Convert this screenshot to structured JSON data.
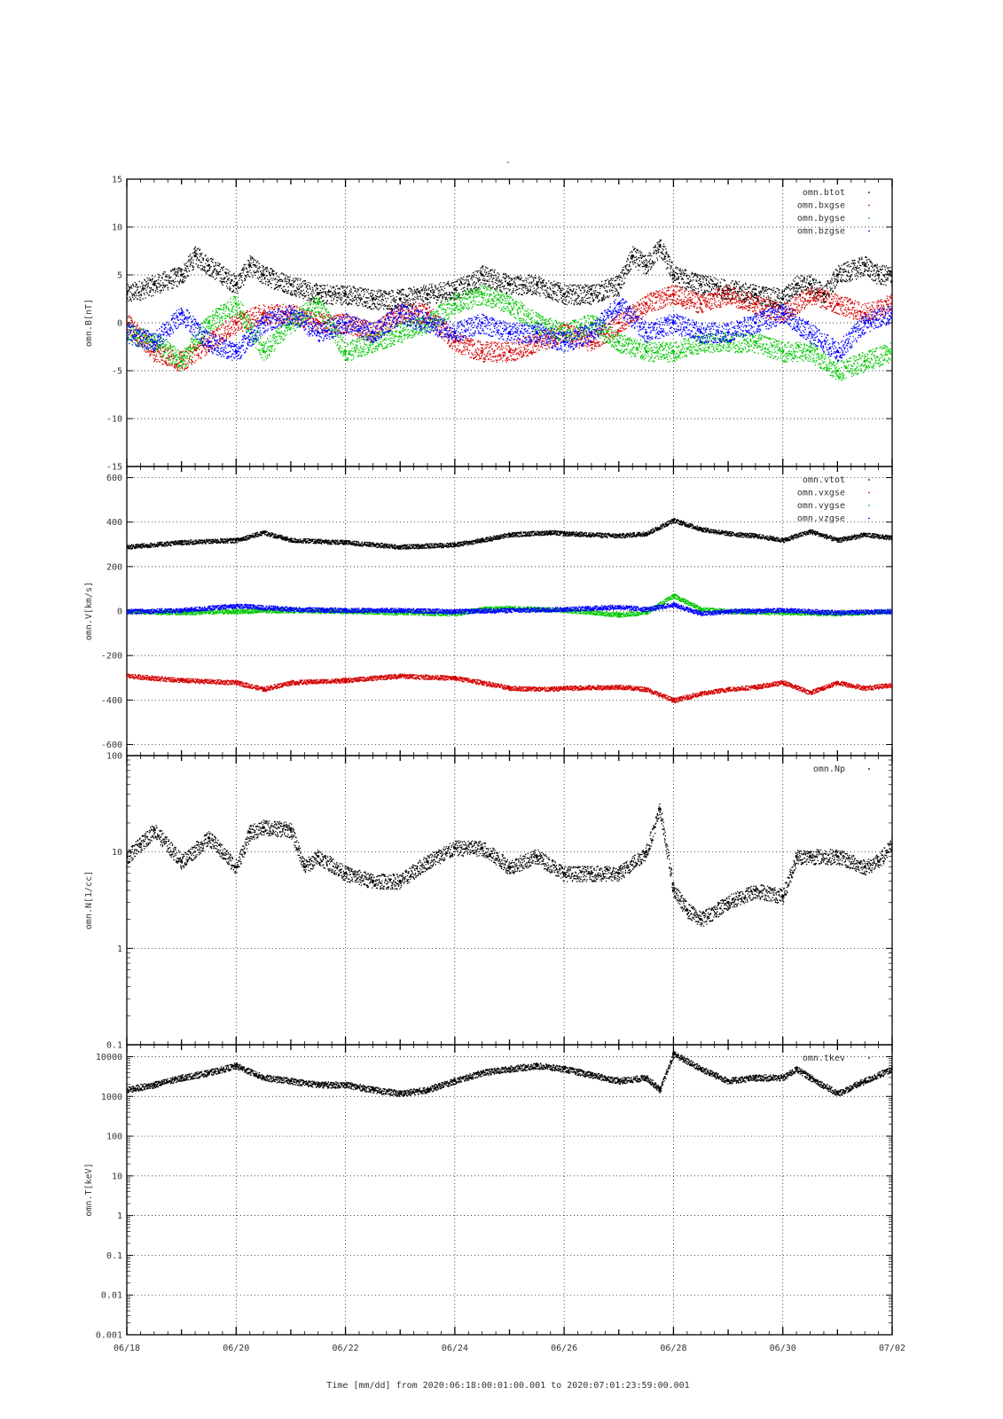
{
  "page": {
    "title": "-"
  },
  "colors": {
    "btot": "#000000",
    "bx": "#d40000",
    "by": "#00c800",
    "bz": "#0000ff"
  },
  "time": {
    "start_day": "2020-06-18",
    "end_day": "2020-07-02",
    "tick_labels": [
      "06/18",
      "06/20",
      "06/22",
      "06/24",
      "06/26",
      "06/28",
      "06/30",
      "07/02"
    ],
    "xlabel": "Time [mm/dd]  from 2020:06:18:00:01:00.001  to  2020:07:01:23:59:00.001"
  },
  "chart_data": [
    {
      "type": "scatter",
      "ylabel": "omn.B[nT]",
      "ylim": [
        -15,
        15
      ],
      "yscale": "linear",
      "ytick_labels": [
        "15",
        "10",
        "5",
        "0",
        "-5",
        "-10",
        "-15"
      ],
      "ytick_values": [
        15,
        10,
        5,
        0,
        -5,
        -10,
        -15
      ],
      "legend_position": "top-right",
      "grid": true,
      "series": [
        {
          "name": "omn.btot",
          "color_key": "btot",
          "x": [
            "06/18 00:00",
            "06/18 12:00",
            "06/19 00:00",
            "06/19 06:00",
            "06/19 12:00",
            "06/20 00:00",
            "06/20 06:00",
            "06/20 12:00",
            "06/21 00:00",
            "06/21 12:00",
            "06/22 00:00",
            "06/22 12:00",
            "06/23 00:00",
            "06/23 12:00",
            "06/24 00:00",
            "06/24 06:00",
            "06/24 12:00",
            "06/25 00:00",
            "06/25 12:00",
            "06/26 00:00",
            "06/26 12:00",
            "06/27 00:00",
            "06/27 06:00",
            "06/27 12:00",
            "06/27 18:00",
            "06/28 00:00",
            "06/28 12:00",
            "06/29 00:00",
            "06/29 12:00",
            "06/30 00:00",
            "06/30 06:00",
            "06/30 12:00",
            "06/30 18:00",
            "07/01 00:00",
            "07/01 12:00",
            "07/01 18:00",
            "07/02 00:00"
          ],
          "y": [
            3,
            4,
            5,
            7,
            6,
            4,
            6,
            5,
            4,
            3,
            3,
            2.5,
            2.5,
            3,
            3.5,
            4,
            5,
            4,
            4,
            3,
            3,
            4,
            7,
            6,
            8,
            5,
            4,
            3.5,
            3,
            2.5,
            4,
            4,
            3,
            5,
            6,
            5,
            5
          ]
        },
        {
          "name": "omn.bxgse",
          "color_key": "bx",
          "x": [
            "06/18 00:00",
            "06/18 12:00",
            "06/19 00:00",
            "06/19 12:00",
            "06/20 00:00",
            "06/20 12:00",
            "06/21 00:00",
            "06/21 12:00",
            "06/22 00:00",
            "06/22 12:00",
            "06/23 00:00",
            "06/23 12:00",
            "06/24 00:00",
            "06/24 12:00",
            "06/25 00:00",
            "06/25 12:00",
            "06/26 00:00",
            "06/26 12:00",
            "06/27 00:00",
            "06/27 12:00",
            "06/28 00:00",
            "06/28 12:00",
            "06/29 00:00",
            "06/29 12:00",
            "06/30 00:00",
            "06/30 12:00",
            "07/01 00:00",
            "07/01 12:00",
            "07/02 00:00"
          ],
          "y": [
            0,
            -3,
            -4,
            -2,
            0,
            1,
            1,
            0,
            0,
            -1,
            1,
            1,
            -2,
            -3,
            -3,
            -2,
            -1,
            -2,
            0,
            2,
            3,
            2,
            3,
            2,
            1,
            3,
            2,
            1,
            2
          ]
        },
        {
          "name": "omn.bygse",
          "color_key": "by",
          "x": [
            "06/18 00:00",
            "06/18 12:00",
            "06/19 00:00",
            "06/19 12:00",
            "06/20 00:00",
            "06/20 12:00",
            "06/21 00:00",
            "06/21 12:00",
            "06/22 00:00",
            "06/22 12:00",
            "06/23 00:00",
            "06/23 12:00",
            "06/24 00:00",
            "06/24 12:00",
            "06/25 00:00",
            "06/25 12:00",
            "06/26 00:00",
            "06/26 12:00",
            "06/27 00:00",
            "06/27 12:00",
            "06/28 00:00",
            "06/28 12:00",
            "06/29 00:00",
            "06/29 12:00",
            "06/30 00:00",
            "06/30 12:00",
            "07/01 00:00",
            "07/01 12:00",
            "07/02 00:00"
          ],
          "y": [
            -1,
            -2,
            -4,
            0,
            2,
            -3,
            0,
            2,
            -3,
            -2,
            -1,
            0,
            2,
            3,
            2,
            0,
            -1,
            0,
            -2,
            -3,
            -3,
            -2,
            -2,
            -2,
            -3,
            -3,
            -5,
            -4,
            -3
          ]
        },
        {
          "name": "omn.bzgse",
          "color_key": "bz",
          "x": [
            "06/18 00:00",
            "06/18 12:00",
            "06/19 00:00",
            "06/19 12:00",
            "06/20 00:00",
            "06/20 12:00",
            "06/21 00:00",
            "06/21 12:00",
            "06/22 00:00",
            "06/22 12:00",
            "06/23 00:00",
            "06/23 12:00",
            "06/24 00:00",
            "06/24 12:00",
            "06/25 00:00",
            "06/25 12:00",
            "06/26 00:00",
            "06/26 12:00",
            "06/27 00:00",
            "06/27 12:00",
            "06/28 00:00",
            "06/28 12:00",
            "06/29 00:00",
            "06/29 12:00",
            "06/30 00:00",
            "06/30 12:00",
            "07/01 00:00",
            "07/01 12:00",
            "07/02 00:00"
          ],
          "y": [
            -1,
            -2,
            1,
            -2,
            -3,
            0,
            1,
            -1,
            0,
            -1,
            1,
            0,
            -1,
            0,
            -1,
            -1,
            -2,
            -1,
            2,
            -1,
            0,
            -1,
            -1,
            0,
            1,
            -1,
            -3,
            0,
            1
          ]
        }
      ]
    },
    {
      "type": "scatter",
      "ylabel": "omn.V[km/s]",
      "ylim": [
        -650,
        650
      ],
      "yscale": "linear",
      "ytick_labels": [
        "600",
        "400",
        "200",
        "0",
        "-200",
        "-400",
        "-600"
      ],
      "ytick_values": [
        600,
        400,
        200,
        0,
        -200,
        -400,
        -600
      ],
      "legend_position": "top-right",
      "grid": true,
      "series": [
        {
          "name": "omn.vtot",
          "color_key": "btot",
          "x": [
            "06/18 00:00",
            "06/19 00:00",
            "06/20 00:00",
            "06/20 12:00",
            "06/21 00:00",
            "06/22 00:00",
            "06/23 00:00",
            "06/24 00:00",
            "06/24 12:00",
            "06/25 00:00",
            "06/25 18:00",
            "06/26 00:00",
            "06/27 00:00",
            "06/27 12:00",
            "06/28 00:00",
            "06/28 12:00",
            "06/29 00:00",
            "06/29 12:00",
            "06/30 00:00",
            "06/30 12:00",
            "07/01 00:00",
            "07/01 12:00",
            "07/02 00:00"
          ],
          "y": [
            290,
            310,
            320,
            355,
            320,
            310,
            290,
            300,
            320,
            345,
            355,
            350,
            340,
            350,
            410,
            370,
            350,
            340,
            320,
            360,
            320,
            345,
            330
          ]
        },
        {
          "name": "omn.vxgse",
          "color_key": "bx",
          "x": [
            "06/18 00:00",
            "06/19 00:00",
            "06/20 00:00",
            "06/20 12:00",
            "06/21 00:00",
            "06/22 00:00",
            "06/23 00:00",
            "06/24 00:00",
            "06/24 12:00",
            "06/25 00:00",
            "06/25 18:00",
            "06/26 00:00",
            "06/27 00:00",
            "06/27 12:00",
            "06/28 00:00",
            "06/28 12:00",
            "06/29 00:00",
            "06/29 12:00",
            "06/30 00:00",
            "06/30 12:00",
            "07/01 00:00",
            "07/01 12:00",
            "07/02 00:00"
          ],
          "y": [
            -290,
            -310,
            -320,
            -350,
            -320,
            -310,
            -290,
            -300,
            -320,
            -345,
            -350,
            -345,
            -340,
            -350,
            -400,
            -370,
            -350,
            -340,
            -320,
            -365,
            -320,
            -345,
            -330
          ]
        },
        {
          "name": "omn.vygse",
          "color_key": "by",
          "x": [
            "06/18 00:00",
            "06/19 00:00",
            "06/20 00:00",
            "06/21 00:00",
            "06/22 00:00",
            "06/23 00:00",
            "06/24 00:00",
            "06/24 12:00",
            "06/25 00:00",
            "06/26 00:00",
            "06/27 00:00",
            "06/27 12:00",
            "06/28 00:00",
            "06/28 12:00",
            "06/29 00:00",
            "06/30 00:00",
            "07/01 00:00",
            "07/02 00:00"
          ],
          "y": [
            0,
            -5,
            0,
            5,
            0,
            -5,
            -10,
            10,
            15,
            5,
            -15,
            -5,
            70,
            10,
            0,
            -5,
            -10,
            0
          ]
        },
        {
          "name": "omn.vzgse",
          "color_key": "bz",
          "x": [
            "06/18 00:00",
            "06/19 00:00",
            "06/20 00:00",
            "06/21 00:00",
            "06/22 00:00",
            "06/23 00:00",
            "06/24 00:00",
            "06/25 00:00",
            "06/26 00:00",
            "06/27 00:00",
            "06/27 12:00",
            "06/28 00:00",
            "06/28 12:00",
            "06/29 00:00",
            "06/30 00:00",
            "07/01 00:00",
            "07/02 00:00"
          ],
          "y": [
            0,
            5,
            25,
            10,
            5,
            5,
            0,
            5,
            10,
            20,
            10,
            30,
            -10,
            0,
            5,
            -5,
            0
          ]
        }
      ]
    },
    {
      "type": "scatter",
      "ylabel": "omn.N[1/cc]",
      "ylim": [
        0.1,
        100
      ],
      "yscale": "log",
      "ytick_labels": [
        "100",
        "10",
        "1",
        "0.1"
      ],
      "ytick_values": [
        100,
        10,
        1,
        0.1
      ],
      "legend_position": "top-right",
      "grid": true,
      "series": [
        {
          "name": "omn.Np",
          "color_key": "btot",
          "x": [
            "06/18 00:00",
            "06/18 06:00",
            "06/18 12:00",
            "06/19 00:00",
            "06/19 12:00",
            "06/20 00:00",
            "06/20 06:00",
            "06/20 12:00",
            "06/21 00:00",
            "06/21 06:00",
            "06/21 12:00",
            "06/22 00:00",
            "06/22 12:00",
            "06/23 00:00",
            "06/23 12:00",
            "06/24 00:00",
            "06/24 12:00",
            "06/25 00:00",
            "06/25 12:00",
            "06/26 00:00",
            "06/26 12:00",
            "06/27 00:00",
            "06/27 12:00",
            "06/27 18:00",
            "06/28 00:00",
            "06/28 06:00",
            "06/28 12:00",
            "06/29 00:00",
            "06/29 12:00",
            "06/30 00:00",
            "06/30 06:00",
            "06/30 12:00",
            "07/01 00:00",
            "07/01 12:00",
            "07/01 18:00",
            "07/02 00:00"
          ],
          "y": [
            9,
            12,
            17,
            8,
            14,
            7,
            16,
            18,
            17,
            7,
            9,
            6,
            5,
            5,
            8,
            11,
            11,
            7,
            9,
            6,
            6,
            6,
            10,
            28,
            4,
            2.5,
            2,
            3,
            4,
            3.5,
            9,
            9,
            9,
            7,
            8,
            12
          ]
        }
      ]
    },
    {
      "type": "scatter",
      "ylabel": "omn.T[keV]",
      "ylim": [
        0.001,
        20000
      ],
      "yscale": "log",
      "ytick_labels": [
        "10000",
        "1000",
        "100",
        "10",
        "1",
        "0.1",
        "0.01",
        "0.001"
      ],
      "ytick_values": [
        10000,
        1000,
        100,
        10,
        1,
        0.1,
        0.01,
        0.001
      ],
      "legend_position": "top-right",
      "grid": true,
      "series": [
        {
          "name": "omn.tkev",
          "color_key": "btot",
          "x": [
            "06/18 00:00",
            "06/18 12:00",
            "06/19 00:00",
            "06/19 12:00",
            "06/20 00:00",
            "06/20 12:00",
            "06/21 00:00",
            "06/21 12:00",
            "06/22 00:00",
            "06/22 12:00",
            "06/23 00:00",
            "06/23 12:00",
            "06/24 00:00",
            "06/24 12:00",
            "06/25 00:00",
            "06/25 12:00",
            "06/26 00:00",
            "06/26 12:00",
            "06/27 00:00",
            "06/27 12:00",
            "06/27 18:00",
            "06/28 00:00",
            "06/28 12:00",
            "06/29 00:00",
            "06/29 12:00",
            "06/30 00:00",
            "06/30 06:00",
            "06/30 12:00",
            "07/01 00:00",
            "07/01 12:00",
            "07/02 00:00"
          ],
          "y": [
            1500,
            2000,
            3000,
            4000,
            6000,
            3000,
            2500,
            2000,
            2000,
            1500,
            1200,
            1500,
            2500,
            4000,
            5000,
            6000,
            5000,
            3500,
            2500,
            3000,
            1500,
            12000,
            5000,
            2500,
            3000,
            3000,
            5000,
            3000,
            1200,
            2500,
            5000
          ]
        }
      ]
    }
  ]
}
